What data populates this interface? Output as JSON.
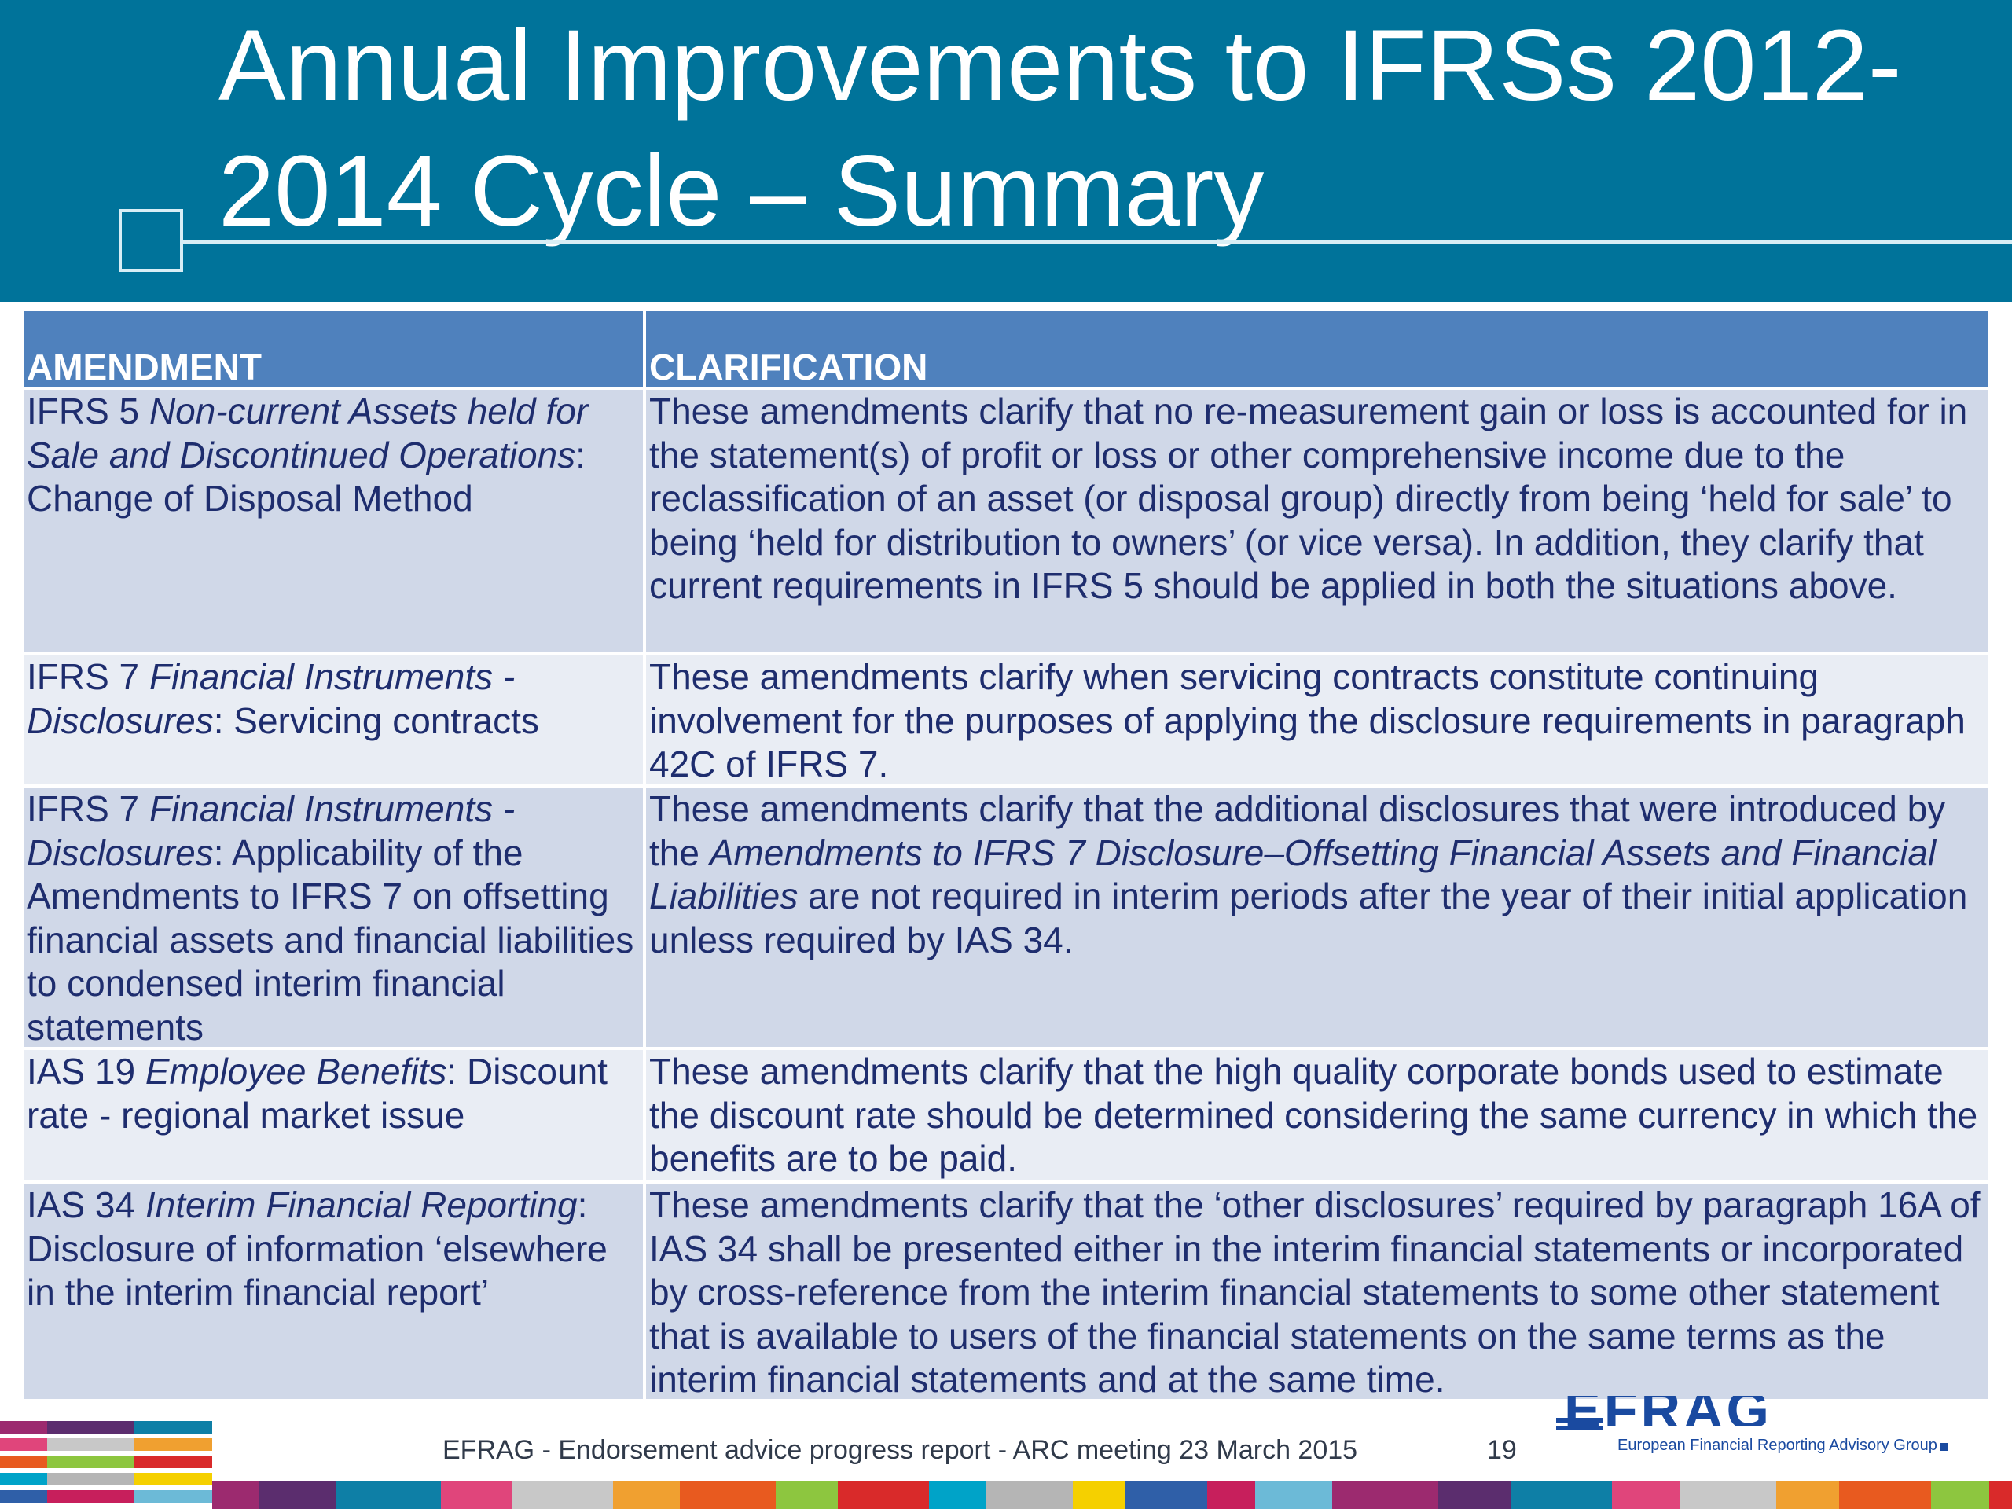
{
  "title": "Annual Improvements to IFRSs 2012-2014 Cycle – Summary",
  "table": {
    "headers": [
      "AMENDMENT",
      "CLARIFICATION"
    ],
    "rows": [
      {
        "amendment_prefix": "IFRS 5 ",
        "amendment_italic": "Non-current Assets held for Sale and Discontinued Operations",
        "amendment_suffix": ": Change of Disposal Method",
        "clarification_pre": "These amendments clarify that no re-measurement gain or loss is accounted for in the statement(s) of profit or loss or other comprehensive income due to the reclassification of an asset (or disposal group) directly from being ‘held for sale’ to being ‘held for distribution to owners’ (or vice versa). In addition, they clarify that current requirements in IFRS 5 should be applied in both the situations above.",
        "clarification_italic": "",
        "clarification_post": ""
      },
      {
        "amendment_prefix": "IFRS 7 ",
        "amendment_italic": "Financial Instruments - Disclosures",
        "amendment_suffix": ": Servicing contracts",
        "clarification_pre": "These amendments clarify when servicing contracts constitute continuing involvement for the purposes of applying the disclosure requirements in paragraph 42C of IFRS 7.",
        "clarification_italic": "",
        "clarification_post": ""
      },
      {
        "amendment_prefix": "IFRS 7 ",
        "amendment_italic": "Financial Instruments - Disclosures",
        "amendment_suffix": ": Applicability of the Amendments to IFRS 7 on offsetting financial assets and financial liabilities to condensed interim financial statements",
        "clarification_pre": "These amendments clarify that the additional disclosures that were introduced by the ",
        "clarification_italic": "Amendments to IFRS 7 Disclosure–Offsetting Financial Assets and Financial Liabilities",
        "clarification_post": " are not required in interim periods after the year of their initial application unless required by IAS 34."
      },
      {
        "amendment_prefix": "IAS 19 ",
        "amendment_italic": "Employee Benefits",
        "amendment_suffix": ": Discount rate - regional market issue",
        "clarification_pre": "These amendments clarify that the high quality corporate bonds used to estimate the discount rate should be determined considering the same currency in which the benefits are to be paid.",
        "clarification_italic": "",
        "clarification_post": ""
      },
      {
        "amendment_prefix": "IAS 34 ",
        "amendment_italic": "Interim Financial Reporting",
        "amendment_suffix": ": Disclosure of information ‘elsewhere in the interim financial report’",
        "clarification_pre": "These amendments clarify that the ‘other disclosures’ required by paragraph 16A of IAS 34 shall be presented either in the interim financial statements or incorporated by cross-reference from the interim financial statements to some other statement that is available to users of the financial statements on the same terms as the interim financial statements and at the same time.",
        "clarification_italic": "",
        "clarification_post": ""
      }
    ]
  },
  "footer": {
    "text": "EFRAG - Endorsement advice progress report - ARC meeting 23 March 2015",
    "page_number": "19",
    "logo_text": "EFRAG",
    "logo_subtitle": "European Financial Reporting Advisory Group",
    "stripe_colors": [
      "#9c2a6f",
      "#5b2d6e",
      "#0e7fa6",
      "#e0457b",
      "#c8c8c8",
      "#f0a030",
      "#e85a1f",
      "#8dc63f",
      "#d92a2a",
      "#00a3c8",
      "#b5b5b5",
      "#f5d000",
      "#2f5fa8",
      "#c71f5c",
      "#6cbad7"
    ]
  }
}
